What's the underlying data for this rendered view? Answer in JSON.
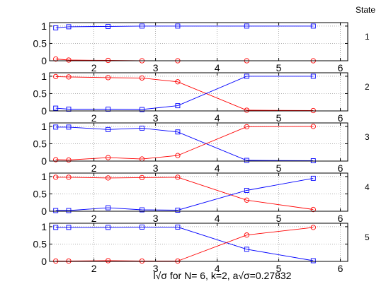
{
  "figure": {
    "state_header": "State",
    "xlabel": "l√σ for  N= 6, k=2, a√σ=0.27832"
  },
  "colors": {
    "red": "#ff0000",
    "blue": "#0000ff",
    "grid": "#808080"
  },
  "chart_data": [
    {
      "type": "line",
      "panel_label": "1",
      "xlim": [
        1.28,
        6.12
      ],
      "ylim": [
        0,
        1.1
      ],
      "xticks": [
        2,
        3,
        4,
        5,
        6
      ],
      "yticks": [
        0,
        0.5,
        1
      ],
      "xticklabels": [
        "2",
        "3",
        "4",
        "5",
        "6"
      ],
      "yticklabels": [
        "0",
        "0.5",
        "1"
      ],
      "grid": true,
      "series": [
        {
          "color": "#0000ff",
          "marker": "square",
          "x": [
            1.38,
            1.59,
            2.23,
            2.78,
            3.36,
            4.48,
            5.56
          ],
          "y": [
            0.95,
            0.98,
            0.99,
            1.0,
            1.0,
            1.0,
            1.0
          ]
        },
        {
          "color": "#ff0000",
          "marker": "circle",
          "x": [
            1.38,
            1.59,
            2.23,
            2.78,
            3.36,
            4.48,
            5.56
          ],
          "y": [
            0.05,
            0.02,
            0.01,
            0.0,
            0.0,
            0.0,
            0.0
          ]
        }
      ]
    },
    {
      "type": "line",
      "panel_label": "2",
      "xlim": [
        1.28,
        6.12
      ],
      "ylim": [
        0,
        1.1
      ],
      "xticks": [
        2,
        3,
        4,
        5,
        6
      ],
      "yticks": [
        0,
        0.5,
        1
      ],
      "xticklabels": [
        "2",
        "3",
        "4",
        "5",
        "6"
      ],
      "yticklabels": [
        "0",
        "0.5",
        "1"
      ],
      "grid": true,
      "series": [
        {
          "color": "#ff0000",
          "marker": "circle",
          "x": [
            1.38,
            1.59,
            2.23,
            2.78,
            3.36,
            4.48,
            5.56
          ],
          "y": [
            0.99,
            0.98,
            0.96,
            0.95,
            0.84,
            0.02,
            0.01
          ]
        },
        {
          "color": "#0000ff",
          "marker": "square",
          "x": [
            1.38,
            1.59,
            2.23,
            2.78,
            3.36,
            4.48,
            5.56
          ],
          "y": [
            0.08,
            0.05,
            0.05,
            0.04,
            0.15,
            1.0,
            1.0
          ]
        }
      ]
    },
    {
      "type": "line",
      "panel_label": "3",
      "xlim": [
        1.28,
        6.12
      ],
      "ylim": [
        0,
        1.1
      ],
      "xticks": [
        2,
        3,
        4,
        5,
        6
      ],
      "yticks": [
        0,
        0.5,
        1
      ],
      "xticklabels": [
        "2",
        "3",
        "4",
        "5",
        "6"
      ],
      "yticklabels": [
        "0",
        "0.5",
        "1"
      ],
      "grid": true,
      "series": [
        {
          "color": "#0000ff",
          "marker": "square",
          "x": [
            1.38,
            1.59,
            2.23,
            2.78,
            3.36,
            4.48,
            5.56
          ],
          "y": [
            0.98,
            0.98,
            0.91,
            0.95,
            0.84,
            0.02,
            0.01
          ]
        },
        {
          "color": "#ff0000",
          "marker": "circle",
          "x": [
            1.38,
            1.59,
            2.23,
            2.78,
            3.36,
            4.48,
            5.56
          ],
          "y": [
            0.04,
            0.03,
            0.1,
            0.06,
            0.16,
            0.99,
            1.0
          ]
        }
      ]
    },
    {
      "type": "line",
      "panel_label": "4",
      "xlim": [
        1.28,
        6.12
      ],
      "ylim": [
        0,
        1.1
      ],
      "xticks": [
        2,
        3,
        4,
        5,
        6
      ],
      "yticks": [
        0,
        0.5,
        1
      ],
      "xticklabels": [
        "2",
        "3",
        "4",
        "5",
        "6"
      ],
      "yticklabels": [
        "0",
        "0.5",
        "1"
      ],
      "grid": true,
      "series": [
        {
          "color": "#ff0000",
          "marker": "circle",
          "x": [
            1.38,
            1.59,
            2.23,
            2.78,
            3.36,
            4.48,
            5.56
          ],
          "y": [
            0.98,
            0.98,
            0.96,
            0.97,
            0.98,
            0.32,
            0.05
          ]
        },
        {
          "color": "#0000ff",
          "marker": "square",
          "x": [
            1.38,
            1.59,
            2.23,
            2.78,
            3.36,
            4.48,
            5.56
          ],
          "y": [
            0.02,
            0.02,
            0.1,
            0.04,
            0.03,
            0.6,
            0.95
          ]
        }
      ]
    },
    {
      "type": "line",
      "panel_label": "5",
      "xlim": [
        1.28,
        6.12
      ],
      "ylim": [
        0,
        1.1
      ],
      "xticks": [
        2,
        3,
        4,
        5,
        6
      ],
      "yticks": [
        0,
        0.5,
        1
      ],
      "xticklabels": [
        "2",
        "3",
        "4",
        "5",
        "6"
      ],
      "yticklabels": [
        "0",
        "0.5",
        "1"
      ],
      "grid": true,
      "series": [
        {
          "color": "#0000ff",
          "marker": "square",
          "x": [
            1.38,
            1.59,
            2.23,
            2.78,
            3.36,
            4.48,
            5.56
          ],
          "y": [
            0.98,
            0.98,
            0.98,
            0.99,
            0.99,
            0.35,
            0.02
          ]
        },
        {
          "color": "#ff0000",
          "marker": "circle",
          "x": [
            1.38,
            1.59,
            2.23,
            2.78,
            3.36,
            4.48,
            5.56
          ],
          "y": [
            0.01,
            0.01,
            0.02,
            0.01,
            0.01,
            0.76,
            0.98
          ]
        }
      ]
    }
  ]
}
